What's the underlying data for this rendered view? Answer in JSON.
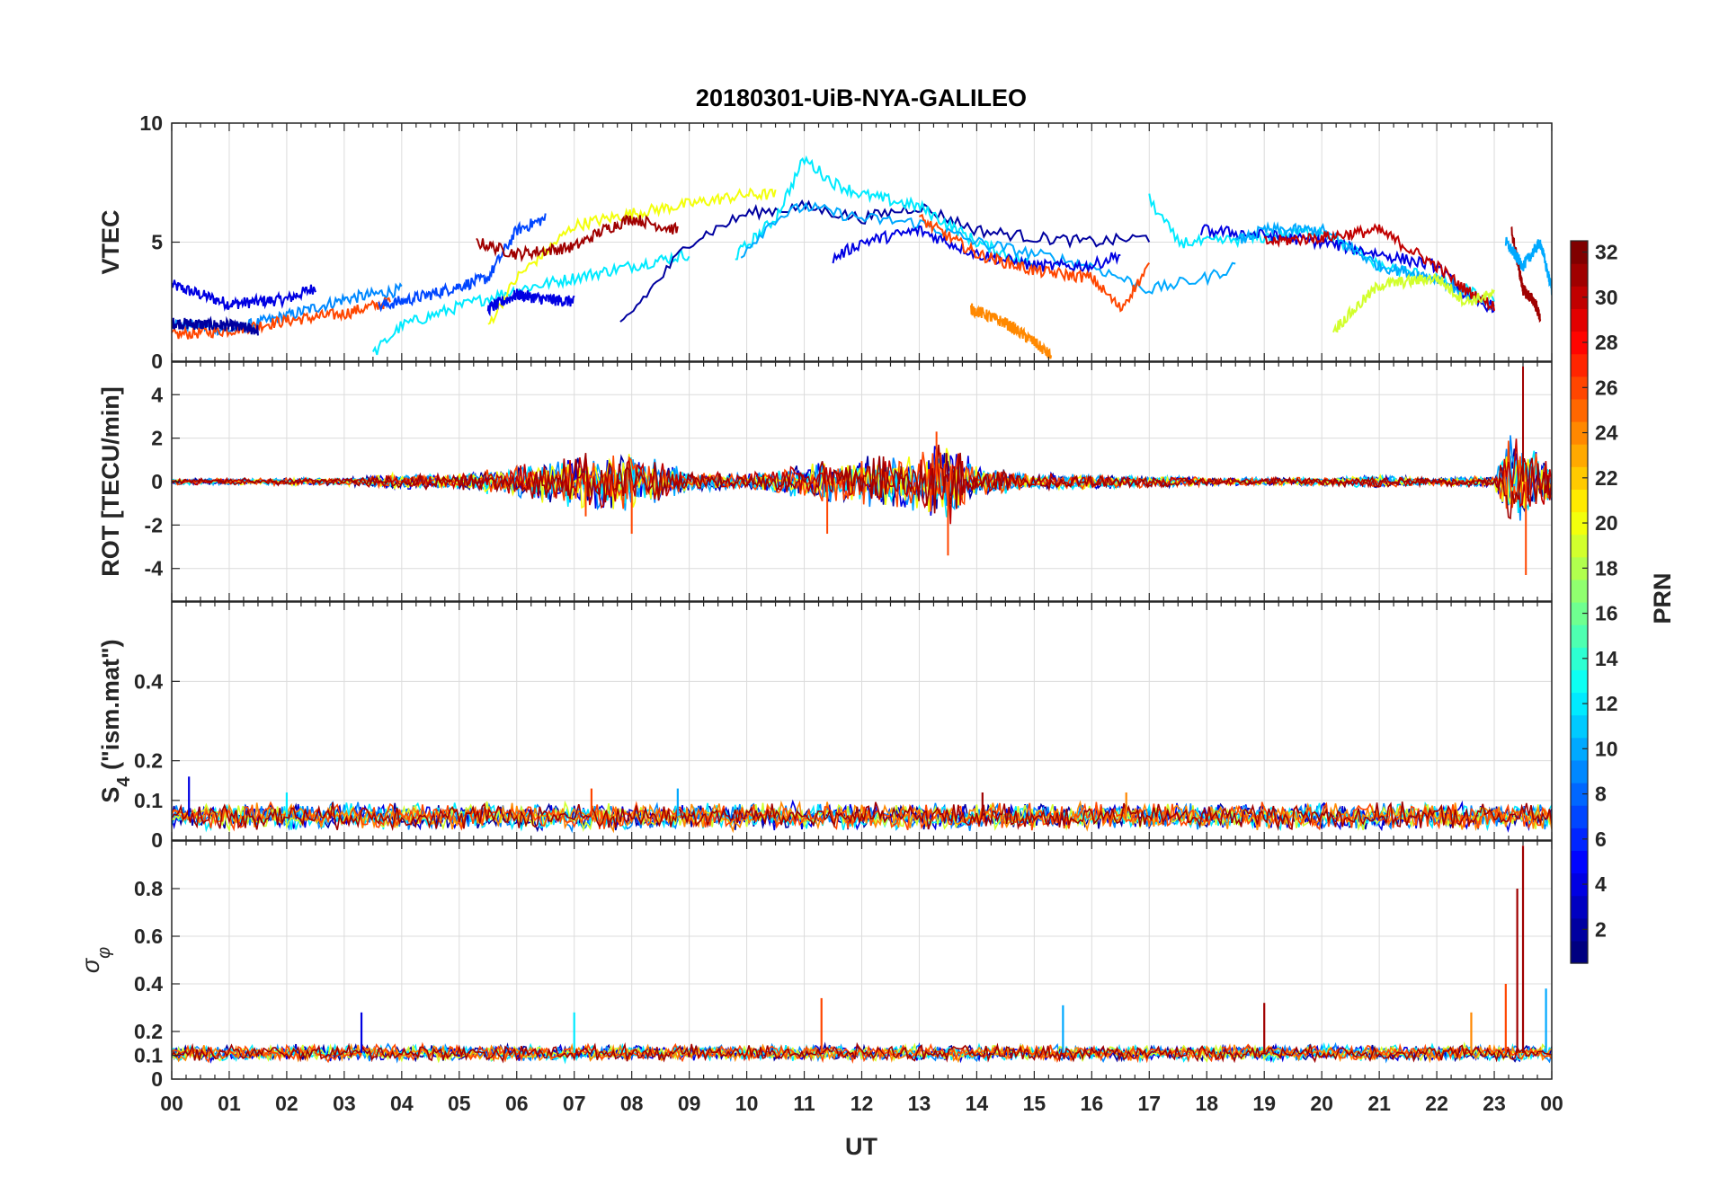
{
  "chart_data": {
    "type": "line",
    "title": "20180301-UiB-NYA-GALILEO",
    "xlabel": "UT",
    "x_ticks": [
      "00",
      "01",
      "02",
      "03",
      "04",
      "05",
      "06",
      "07",
      "08",
      "09",
      "10",
      "11",
      "12",
      "13",
      "14",
      "15",
      "16",
      "17",
      "18",
      "19",
      "20",
      "21",
      "22",
      "23",
      "00"
    ],
    "xlim_hours": [
      0,
      24
    ],
    "grid": true,
    "colorbar": {
      "label": "PRN",
      "colormap": "jet",
      "range": [
        1,
        32
      ],
      "ticks": [
        "2",
        "4",
        "6",
        "8",
        "10",
        "12",
        "14",
        "16",
        "18",
        "20",
        "22",
        "24",
        "26",
        "28",
        "30",
        "32"
      ],
      "placement": "right"
    },
    "panels": [
      {
        "id": "vtec",
        "ylabel": "VTEC",
        "ylim": [
          0,
          10
        ],
        "y_ticks": [
          "0",
          "5",
          "10"
        ],
        "series_prn": [
          2,
          4,
          7,
          9,
          10,
          12,
          19,
          20,
          24,
          26,
          30,
          31
        ],
        "series": [
          {
            "prn": 4,
            "x": [
              0.0,
              1.0,
              2.0,
              2.5
            ],
            "y": [
              3.2,
              2.4,
              2.6,
              3.1
            ]
          },
          {
            "prn": 9,
            "x": [
              0.0,
              1.0,
              2.0,
              3.0,
              4.0
            ],
            "y": [
              1.6,
              1.3,
              1.9,
              2.6,
              3.0
            ]
          },
          {
            "prn": 26,
            "x": [
              0.0,
              1.0,
              2.0,
              3.0,
              3.8
            ],
            "y": [
              1.1,
              1.3,
              1.7,
              2.0,
              2.5
            ]
          },
          {
            "prn": 2,
            "x": [
              0.0,
              1.0,
              1.5
            ],
            "y": [
              1.6,
              1.5,
              1.3
            ]
          },
          {
            "prn": 12,
            "x": [
              3.5,
              4.0,
              5.0,
              6.0,
              7.0,
              8.0,
              9.0
            ],
            "y": [
              0.3,
              1.5,
              2.3,
              3.0,
              3.5,
              4.0,
              4.5
            ]
          },
          {
            "prn": 7,
            "x": [
              3.6,
              4.5,
              5.5,
              6.0,
              6.5
            ],
            "y": [
              2.3,
              2.8,
              3.5,
              5.5,
              6.0
            ]
          },
          {
            "prn": 20,
            "x": [
              5.5,
              6.0,
              7.0,
              8.0,
              9.0,
              10.0,
              10.5
            ],
            "y": [
              1.5,
              3.5,
              5.7,
              6.2,
              6.6,
              7.0,
              7.0
            ]
          },
          {
            "prn": 31,
            "x": [
              5.3,
              6.0,
              7.0,
              7.5,
              8.0,
              8.8
            ],
            "y": [
              5.0,
              4.5,
              4.8,
              5.5,
              6.0,
              5.5
            ]
          },
          {
            "prn": 4,
            "x": [
              5.5,
              6.0,
              6.5,
              7.0
            ],
            "y": [
              2.2,
              2.8,
              2.6,
              2.5
            ]
          },
          {
            "prn": 2,
            "x": [
              7.8,
              8.5,
              9.0,
              10.0,
              11.0,
              12.0,
              13.0,
              14.0,
              15.0,
              16.0,
              17.0
            ],
            "y": [
              1.5,
              3.5,
              5.0,
              6.2,
              6.5,
              6.0,
              6.5,
              5.5,
              5.2,
              5.0,
              5.2
            ]
          },
          {
            "prn": 12,
            "x": [
              9.8,
              10.5,
              11.0,
              11.5,
              12.0,
              13.0,
              14.0,
              15.0
            ],
            "y": [
              4.4,
              6.0,
              8.5,
              7.5,
              7.0,
              6.5,
              5.0,
              4.0
            ]
          },
          {
            "prn": 10,
            "x": [
              9.9,
              10.5,
              11.0,
              12.0,
              13.0,
              14.0,
              15.0,
              16.0,
              17.0,
              18.0,
              18.5
            ],
            "y": [
              4.5,
              6.0,
              6.5,
              6.0,
              5.8,
              5.0,
              4.5,
              4.0,
              3.0,
              3.5,
              4.0
            ]
          },
          {
            "prn": 4,
            "x": [
              11.5,
              12.0,
              13.0,
              14.0,
              15.0,
              16.0,
              16.5
            ],
            "y": [
              4.3,
              5.0,
              5.5,
              4.5,
              4.0,
              4.0,
              4.5
            ]
          },
          {
            "prn": 26,
            "x": [
              13.0,
              14.0,
              15.0,
              16.0,
              16.5,
              17.0
            ],
            "y": [
              6.0,
              4.5,
              3.8,
              3.5,
              2.2,
              4.0
            ]
          },
          {
            "prn": 24,
            "x": [
              13.9,
              14.5,
              15.0,
              15.3
            ],
            "y": [
              2.2,
              1.6,
              0.8,
              0.2
            ]
          },
          {
            "prn": 12,
            "x": [
              17.0,
              17.5,
              18.0,
              19.0,
              20.0,
              21.0,
              22.0,
              23.0
            ],
            "y": [
              6.8,
              5.0,
              5.0,
              5.2,
              5.5,
              4.0,
              3.5,
              2.5
            ]
          },
          {
            "prn": 4,
            "x": [
              17.9,
              19.0,
              20.0,
              21.0,
              22.0,
              22.6,
              23.0
            ],
            "y": [
              5.5,
              5.3,
              5.0,
              4.5,
              4.0,
              2.5,
              2.3
            ]
          },
          {
            "prn": 10,
            "x": [
              18.5,
              19.0,
              20.0,
              21.0,
              22.0,
              23.0
            ],
            "y": [
              5.0,
              5.5,
              5.5,
              4.0,
              3.5,
              2.2
            ]
          },
          {
            "prn": 30,
            "x": [
              19.0,
              20.0,
              21.0,
              22.0,
              22.5,
              23.0
            ],
            "y": [
              5.0,
              5.2,
              5.5,
              4.0,
              3.0,
              2.3
            ]
          },
          {
            "prn": 19,
            "x": [
              20.2,
              21.0,
              22.0,
              22.5,
              23.0
            ],
            "y": [
              1.3,
              3.2,
              3.5,
              2.5,
              2.8
            ]
          },
          {
            "prn": 31,
            "x": [
              23.3,
              23.5,
              23.7,
              23.8
            ],
            "y": [
              5.5,
              3.0,
              2.5,
              1.8
            ]
          },
          {
            "prn": 10,
            "x": [
              23.2,
              23.5,
              23.8,
              24.0
            ],
            "y": [
              5.0,
              4.0,
              5.0,
              3.0
            ]
          }
        ]
      },
      {
        "id": "rot",
        "ylabel": "ROT [TECU/min]",
        "ylim": [
          -5.5,
          5.5
        ],
        "y_ticks": [
          "-4",
          "-2",
          "0",
          "2",
          "4"
        ],
        "envelope": {
          "x": [
            0,
            3,
            4,
            5,
            6,
            7,
            8,
            9,
            10,
            11,
            12,
            13,
            13.5,
            14,
            15,
            16,
            17,
            18,
            19,
            20,
            21,
            22,
            23,
            23.3,
            23.5,
            24
          ],
          "amp": [
            0.15,
            0.2,
            0.4,
            0.4,
            0.8,
            1.3,
            1.5,
            0.5,
            0.4,
            0.9,
            1.2,
            1.6,
            2.4,
            0.8,
            0.4,
            0.4,
            0.3,
            0.2,
            0.2,
            0.2,
            0.3,
            0.2,
            0.3,
            2.5,
            2.0,
            1.0
          ]
        },
        "extremes": [
          {
            "x": 7.2,
            "y": -1.6
          },
          {
            "x": 8.0,
            "y": -2.4
          },
          {
            "x": 11.4,
            "y": -2.4
          },
          {
            "x": 13.5,
            "y": -3.4
          },
          {
            "x": 13.3,
            "y": 2.3
          },
          {
            "x": 23.5,
            "y": 5.3
          },
          {
            "x": 23.55,
            "y": -4.3
          }
        ]
      },
      {
        "id": "s4",
        "ylabel": "S₄ (\"ism.mat\")",
        "ylabel_main": "S",
        "ylabel_sub": "4",
        "ylabel_rest": " (\"ism.mat\")",
        "ylim": [
          0,
          0.6
        ],
        "y_ticks": [
          "0",
          "0.1",
          "0.2",
          "0.4"
        ],
        "baseline": 0.06,
        "amp": 0.025,
        "spikes": [
          {
            "x": 0.3,
            "y": 0.16
          },
          {
            "x": 2.0,
            "y": 0.12
          },
          {
            "x": 7.3,
            "y": 0.13
          },
          {
            "x": 8.8,
            "y": 0.13
          },
          {
            "x": 14.1,
            "y": 0.12
          },
          {
            "x": 16.6,
            "y": 0.12
          }
        ]
      },
      {
        "id": "sigma",
        "ylabel": "σ φ",
        "ylabel_main": "σ",
        "ylabel_sub": "φ",
        "ylim": [
          0,
          1.0
        ],
        "y_ticks": [
          "0",
          "0.1",
          "0.2",
          "0.4",
          "0.6",
          "0.8"
        ],
        "baseline": 0.11,
        "amp": 0.025,
        "spikes": [
          {
            "x": 3.3,
            "y": 0.28
          },
          {
            "x": 7.0,
            "y": 0.28
          },
          {
            "x": 11.3,
            "y": 0.34
          },
          {
            "x": 15.5,
            "y": 0.31
          },
          {
            "x": 19.0,
            "y": 0.32
          },
          {
            "x": 22.6,
            "y": 0.28
          },
          {
            "x": 23.4,
            "y": 0.8
          },
          {
            "x": 23.5,
            "y": 0.98
          },
          {
            "x": 23.2,
            "y": 0.4
          },
          {
            "x": 23.9,
            "y": 0.38
          }
        ]
      }
    ]
  }
}
